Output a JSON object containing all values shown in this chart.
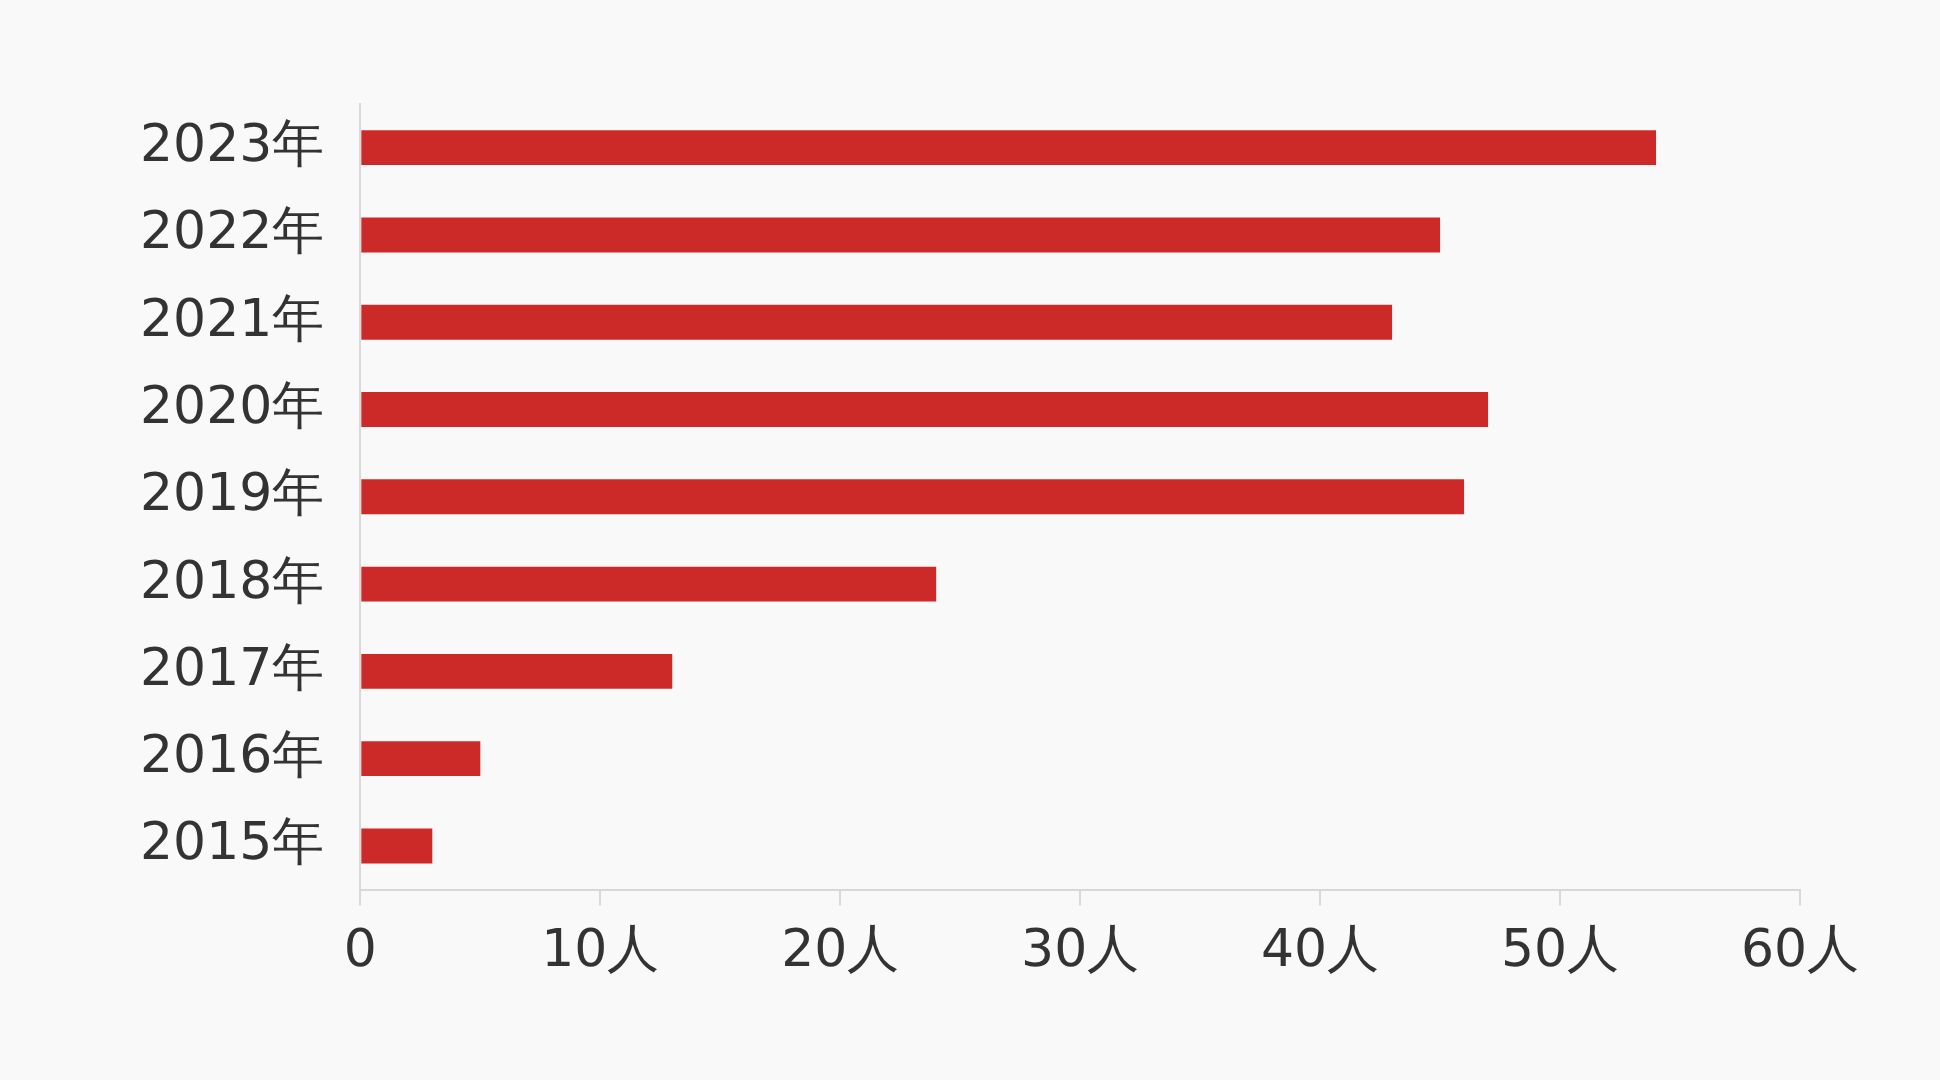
{
  "chart_data": {
    "type": "bar",
    "orientation": "horizontal",
    "categories": [
      "2023年",
      "2022年",
      "2021年",
      "2020年",
      "2019年",
      "2018年",
      "2017年",
      "2016年",
      "2015年"
    ],
    "values": [
      54,
      45,
      43,
      47,
      46,
      24,
      13,
      5,
      3
    ],
    "color": "#cc2929",
    "xlim": [
      0,
      60
    ],
    "xticks": [
      0,
      {
        "value": 10,
        "label": "10人"
      },
      {
        "value": 20,
        "label": "20人"
      },
      {
        "value": 30,
        "label": "30人"
      },
      {
        "value": 40,
        "label": "40人"
      },
      {
        "value": 50,
        "label": "50人"
      },
      {
        "value": 60,
        "label": "60人"
      }
    ],
    "grid": false,
    "legend": false
  }
}
